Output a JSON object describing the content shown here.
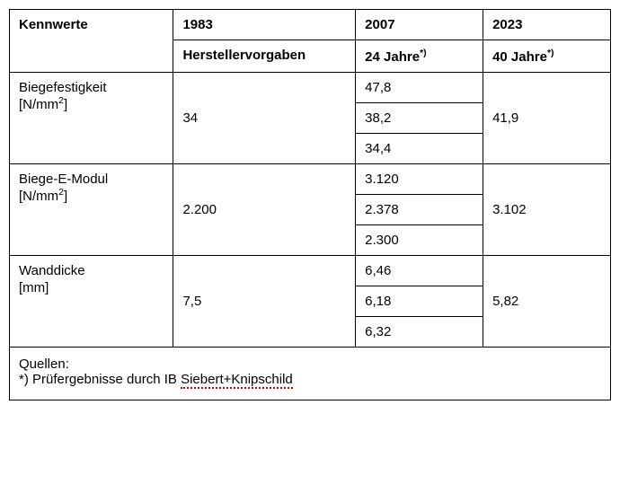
{
  "table": {
    "header": {
      "kennwerte": "Kennwerte",
      "y1983": "1983",
      "y2007": "2007",
      "y2023": "2023",
      "sub1983": "Herstellervorgaben",
      "sub2007_a": "24 Jahre",
      "sub2007_b": "*)",
      "sub2023_a": "40 Jahre",
      "sub2023_b": "*)"
    },
    "rows": [
      {
        "label_line1": "Biegefestigkeit",
        "label_line2_a": "[N/mm",
        "label_line2_sup": "2",
        "label_line2_b": "]",
        "val1983": "34",
        "val2007_1": "47,8",
        "val2007_2": "38,2",
        "val2007_3": "34,4",
        "val2023": "41,9"
      },
      {
        "label_line1": "Biege-E-Modul",
        "label_line2_a": "[N/mm",
        "label_line2_sup": "2",
        "label_line2_b": "]",
        "val1983": "2.200",
        "val2007_1": "3.120",
        "val2007_2": "2.378",
        "val2007_3": "2.300",
        "val2023": "3.102"
      },
      {
        "label_line1": "Wanddicke",
        "label_line2_a": "[mm]",
        "label_line2_sup": "",
        "label_line2_b": "",
        "val1983": "7,5",
        "val2007_1": "6,46",
        "val2007_2": "6,18",
        "val2007_3": "6,32",
        "val2023": "5,82"
      }
    ],
    "footer": {
      "line1": "Quellen:",
      "line2_a": "*) Prüfergebnisse durch IB ",
      "line2_spell": "Siebert+Knipschild"
    }
  },
  "colors": {
    "border": "#000000",
    "text": "#000000",
    "background": "#ffffff",
    "spellcheck": "#cc0000"
  },
  "typography": {
    "font_family": "Arial, Helvetica, sans-serif",
    "font_size_pt": 11,
    "header_weight": "bold"
  }
}
